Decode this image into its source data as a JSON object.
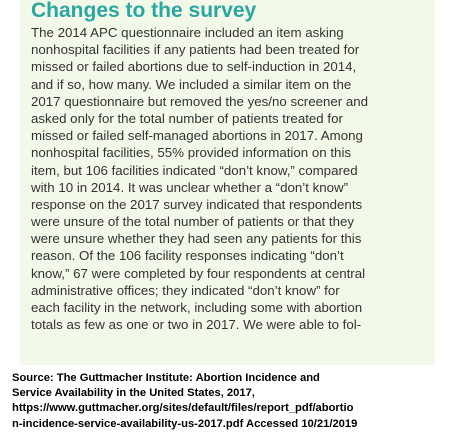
{
  "heading": "Changes to the survey",
  "body_lines": [
    "The 2014 APC questionnaire included an item asking",
    "nonhospital facilities if any patients had been treated for",
    "missed or failed abortions due to self-induction in 2014,",
    "and if so, how many. We included a similar item on the",
    "2017 questionnaire but removed the yes/no screener and",
    "asked only for the total number of patients treated for",
    "missed or failed self-managed abortions in 2017. Among",
    "nonhospital facilities, 55% provided information on this",
    "item, but 106 facilities indicated “don’t know,” compared",
    "with 10 in 2014. It was unclear whether a “don’t know”",
    "response on the 2017 survey indicated that respondents",
    "were unsure of the total number of patients or that they",
    "were unsure whether they had seen any patients for this",
    "reason. Of the 106 facility responses indicating “don’t",
    "know,” 67 were completed by four respondents at central",
    "administrative offices; they indicated “don’t know” for",
    "each facility in the network, including some with abortion",
    "totals as few as one or two in 2017. We were able to fol-"
  ],
  "source_lines": [
    "Source: The Guttmacher Institute: Abortion Incidence and",
    "Service Availability in the United States, 2017,",
    "https://www.guttmacher.org/sites/default/files/report_pdf/abortio",
    "n-incidence-service-availability-us-2017.pdf Accessed 10/21/2019"
  ],
  "colors": {
    "heading": "#2aa7a0",
    "box_background": "#f3f9e9",
    "body_text": "#333333",
    "source_text": "#000000"
  }
}
